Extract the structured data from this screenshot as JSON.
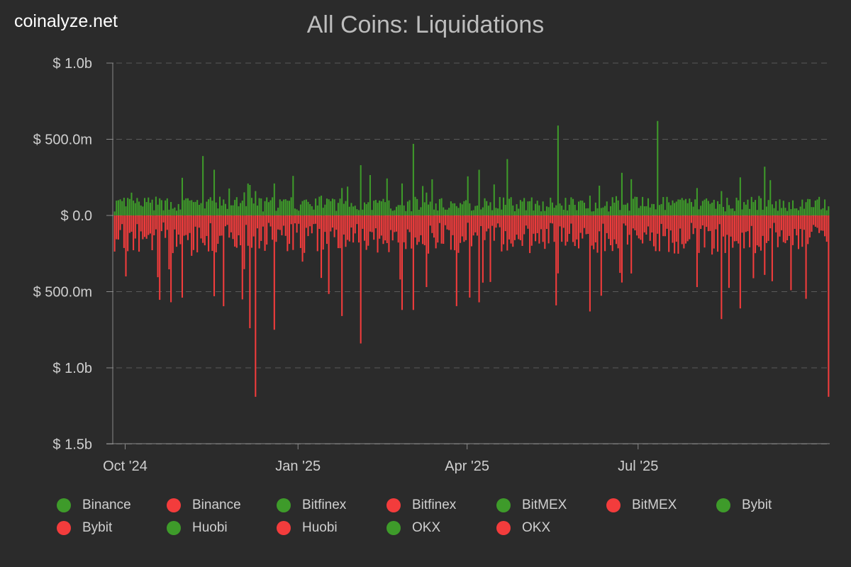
{
  "brand": "coinalyze.net",
  "chart_data": {
    "type": "bar",
    "title": "All Coins: Liquidations",
    "y_axis": {
      "ticks": [
        {
          "value": 1000000000,
          "label": "$ 1.0b"
        },
        {
          "value": 500000000,
          "label": "$ 500.0m"
        },
        {
          "value": 0,
          "label": "$ 0.0"
        },
        {
          "value": -500000000,
          "label": "$ 500.0m"
        },
        {
          "value": -1000000000,
          "label": "$ 1.0b"
        },
        {
          "value": -1500000000,
          "label": "$ 1.5b"
        }
      ],
      "ylim": [
        -1500000000,
        1000000000
      ],
      "grid": true
    },
    "x_axis": {
      "ticks": [
        {
          "date": "2024-10-01",
          "label": "Oct '24"
        },
        {
          "date": "2025-01-01",
          "label": "Jan '25"
        },
        {
          "date": "2025-04-01",
          "label": "Apr '25"
        },
        {
          "date": "2025-07-01",
          "label": "Jul '25"
        }
      ],
      "start_date": "2024-09-21",
      "end_date": "2025-10-11"
    },
    "colors": {
      "long": "#3e9b2a",
      "short": "#f33c3c"
    },
    "legend_position": "bottom",
    "legend": [
      {
        "label": "Binance",
        "color": "#3e9b2a"
      },
      {
        "label": "Binance",
        "color": "#f33c3c"
      },
      {
        "label": "Bitfinex",
        "color": "#3e9b2a"
      },
      {
        "label": "Bitfinex",
        "color": "#f33c3c"
      },
      {
        "label": "BitMEX",
        "color": "#3e9b2a"
      },
      {
        "label": "BitMEX",
        "color": "#f33c3c"
      },
      {
        "label": "Bybit",
        "color": "#3e9b2a"
      },
      {
        "label": "Bybit",
        "color": "#f33c3c"
      },
      {
        "label": "Huobi",
        "color": "#3e9b2a"
      },
      {
        "label": "Huobi",
        "color": "#f33c3c"
      },
      {
        "label": "OKX",
        "color": "#3e9b2a"
      },
      {
        "label": "OKX",
        "color": "#f33c3c"
      }
    ],
    "spikes": [
      {
        "date": "2024-10-01",
        "long": 60000000,
        "short": -400000000
      },
      {
        "date": "2024-11-11",
        "long": 390000000,
        "short": -180000000
      },
      {
        "date": "2024-11-17",
        "long": 300000000,
        "short": -530000000
      },
      {
        "date": "2024-12-06",
        "long": 200000000,
        "short": -740000000
      },
      {
        "date": "2024-12-09",
        "long": 160000000,
        "short": -1190000000
      },
      {
        "date": "2024-12-19",
        "long": 210000000,
        "short": -750000000
      },
      {
        "date": "2025-01-13",
        "long": 130000000,
        "short": -410000000
      },
      {
        "date": "2025-01-24",
        "long": 180000000,
        "short": -660000000
      },
      {
        "date": "2025-02-03",
        "long": 330000000,
        "short": -840000000
      },
      {
        "date": "2025-02-25",
        "long": 210000000,
        "short": -620000000
      },
      {
        "date": "2025-03-03",
        "long": 470000000,
        "short": -620000000
      },
      {
        "date": "2025-03-10",
        "long": 150000000,
        "short": -470000000
      },
      {
        "date": "2025-04-07",
        "long": 300000000,
        "short": -570000000
      },
      {
        "date": "2025-04-22",
        "long": 370000000,
        "short": -230000000
      },
      {
        "date": "2025-05-19",
        "long": 590000000,
        "short": -380000000
      },
      {
        "date": "2025-06-05",
        "long": 130000000,
        "short": -630000000
      },
      {
        "date": "2025-06-22",
        "long": 280000000,
        "short": -440000000
      },
      {
        "date": "2025-07-11",
        "long": 620000000,
        "short": -120000000
      },
      {
        "date": "2025-08-01",
        "long": 180000000,
        "short": -470000000
      },
      {
        "date": "2025-08-14",
        "long": 160000000,
        "short": -680000000
      },
      {
        "date": "2025-08-24",
        "long": 250000000,
        "short": -610000000
      },
      {
        "date": "2025-09-06",
        "long": 320000000,
        "short": -390000000
      },
      {
        "date": "2025-10-10",
        "long": 60000000,
        "short": -1190000000
      }
    ],
    "baseline": {
      "long_typical": 75000000,
      "short_typical": -130000000
    }
  }
}
